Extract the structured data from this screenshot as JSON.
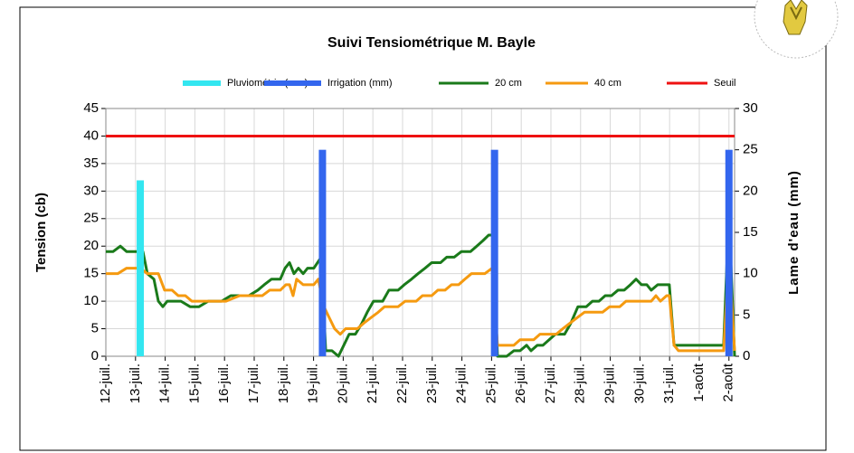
{
  "chart_data": {
    "type": "line",
    "title": "Suivi Tensiométrique M. Bayle",
    "ylabel": "Tension (cb)",
    "y2label": "Lame d'eau (mm)",
    "xlim": [
      0,
      21.19
    ],
    "xticks": [
      {
        "value": 0,
        "label": "12-juil."
      },
      {
        "value": 1,
        "label": "13-juil."
      },
      {
        "value": 2,
        "label": "14-juil."
      },
      {
        "value": 3,
        "label": "15-juil."
      },
      {
        "value": 4,
        "label": "16-juil."
      },
      {
        "value": 5,
        "label": "17-juil."
      },
      {
        "value": 6,
        "label": "18-juil."
      },
      {
        "value": 7,
        "label": "19-juil."
      },
      {
        "value": 8,
        "label": "20-juil."
      },
      {
        "value": 9,
        "label": "21-juil."
      },
      {
        "value": 10,
        "label": "22-juil."
      },
      {
        "value": 11,
        "label": "23-juil."
      },
      {
        "value": 12,
        "label": "24-juil."
      },
      {
        "value": 13,
        "label": "25-juil."
      },
      {
        "value": 14,
        "label": "26-juil."
      },
      {
        "value": 15,
        "label": "27-juil."
      },
      {
        "value": 16,
        "label": "28-juil."
      },
      {
        "value": 17,
        "label": "29-juil."
      },
      {
        "value": 18,
        "label": "30-juil."
      },
      {
        "value": 19,
        "label": "31-juil."
      },
      {
        "value": 20,
        "label": "1-août"
      },
      {
        "value": 21,
        "label": "2-août"
      }
    ],
    "ylim": [
      0,
      45
    ],
    "yticks": [
      0,
      5,
      10,
      15,
      20,
      25,
      30,
      35,
      40,
      45
    ],
    "y2lim": [
      0,
      30
    ],
    "y2ticks": [
      0,
      5,
      10,
      15,
      20,
      25,
      30
    ],
    "grid": true,
    "series": [
      {
        "name": "Pluviométrie (mm)",
        "type": "bar",
        "axis": "y2",
        "color": "#33e6f0",
        "x": [
          1.16
        ],
        "values": [
          21.3
        ]
      },
      {
        "name": "Irrigation (mm)",
        "type": "bar",
        "axis": "y2",
        "color": "#3366ee",
        "x": [
          7.3,
          13.1,
          21.0
        ],
        "values": [
          25,
          25,
          25
        ]
      },
      {
        "name": "20 cm",
        "type": "line",
        "color": "#1a7a1a",
        "x": [
          0,
          0.24,
          0.49,
          0.7,
          1.01,
          1.25,
          1.4,
          1.62,
          1.77,
          1.92,
          2.07,
          2.53,
          2.84,
          3.14,
          3.45,
          3.9,
          4.21,
          4.82,
          5.12,
          5.34,
          5.58,
          5.88,
          6.04,
          6.19,
          6.34,
          6.49,
          6.65,
          6.8,
          7.01,
          7.26,
          7.41,
          7.62,
          7.84,
          8.02,
          8.2,
          8.41,
          8.63,
          8.81,
          9.02,
          9.33,
          9.54,
          9.85,
          10.06,
          10.3,
          10.52,
          10.76,
          10.98,
          11.28,
          11.49,
          11.74,
          11.98,
          12.29,
          12.5,
          12.71,
          12.9,
          13.05,
          13.2,
          13.51,
          13.75,
          13.96,
          14.18,
          14.33,
          14.54,
          14.73,
          14.94,
          15.15,
          15.46,
          15.67,
          15.91,
          16.19,
          16.4,
          16.62,
          16.83,
          17.04,
          17.26,
          17.47,
          17.68,
          17.87,
          18.05,
          18.23,
          18.38,
          18.6,
          18.99,
          19.15,
          20.82,
          21.0,
          21.19
        ],
        "values": [
          19,
          19,
          20,
          19,
          19,
          19,
          15,
          14,
          10,
          9,
          10,
          10,
          9,
          9,
          10,
          10,
          11,
          11,
          12,
          13,
          14,
          14,
          16,
          17,
          15,
          16,
          15,
          16,
          16,
          18,
          1,
          1,
          0,
          2,
          4,
          4,
          6,
          8,
          10,
          10,
          12,
          12,
          13,
          14,
          15,
          16,
          17,
          17,
          18,
          18,
          19,
          19,
          20,
          21,
          22,
          22,
          0,
          0,
          1,
          1,
          2,
          1,
          2,
          2,
          3,
          4,
          4,
          6,
          9,
          9,
          10,
          10,
          11,
          11,
          12,
          12,
          13,
          14,
          13,
          13,
          12,
          13,
          13,
          2,
          2,
          26,
          0
        ]
      },
      {
        "name": "40 cm",
        "type": "line",
        "color": "#f59a10",
        "x": [
          0,
          0.4,
          0.7,
          1.16,
          1.4,
          1.77,
          1.98,
          2.23,
          2.44,
          2.68,
          2.9,
          4.05,
          4.51,
          5.27,
          5.52,
          5.88,
          6.07,
          6.19,
          6.31,
          6.43,
          6.65,
          7.01,
          7.16,
          7.35,
          7.53,
          7.71,
          7.9,
          8.08,
          8.48,
          8.69,
          8.93,
          9.18,
          9.39,
          9.85,
          10.09,
          10.46,
          10.67,
          10.98,
          11.19,
          11.43,
          11.65,
          11.89,
          12.1,
          12.32,
          12.77,
          13.02,
          13.2,
          13.75,
          13.96,
          14.42,
          14.63,
          15.18,
          15.4,
          15.64,
          15.88,
          16.13,
          16.74,
          16.98,
          17.32,
          17.53,
          18.38,
          18.54,
          18.69,
          18.9,
          18.99,
          19.15,
          19.3,
          20.82,
          21.0,
          21.19
        ],
        "values": [
          15,
          15,
          16,
          16,
          15,
          15,
          12,
          12,
          11,
          11,
          10,
          10,
          11,
          11,
          12,
          12,
          13,
          13,
          11,
          14,
          13,
          13,
          14,
          9,
          7,
          5,
          4,
          5,
          5,
          6,
          7,
          8,
          9,
          9,
          10,
          10,
          11,
          11,
          12,
          12,
          13,
          13,
          14,
          15,
          15,
          16,
          2,
          2,
          3,
          3,
          4,
          4,
          5,
          6,
          7,
          8,
          8,
          9,
          9,
          10,
          10,
          11,
          10,
          11,
          11,
          2,
          1,
          1,
          18,
          1
        ]
      },
      {
        "name": "Seuil",
        "type": "line",
        "color": "#ee1111",
        "x": [
          0,
          21.19
        ],
        "values": [
          40,
          40
        ]
      }
    ]
  }
}
